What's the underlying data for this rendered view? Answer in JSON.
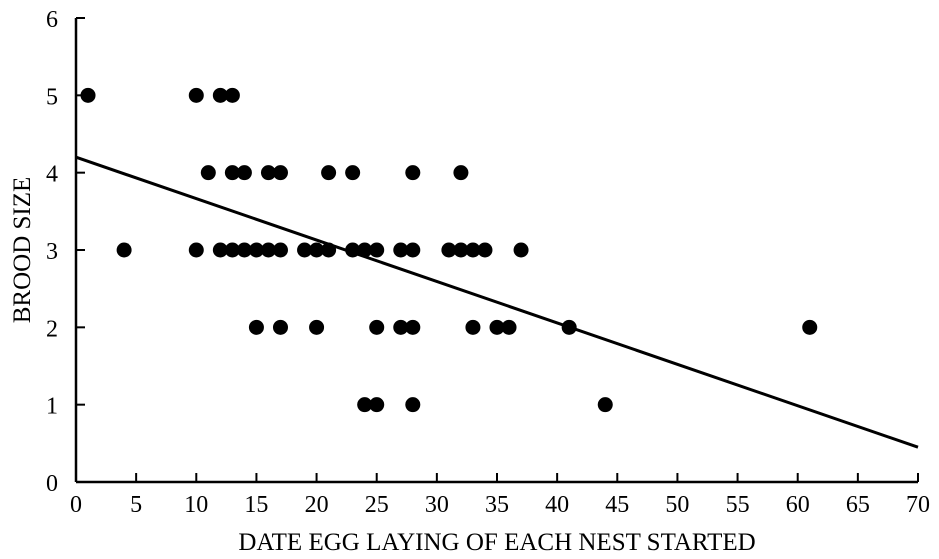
{
  "chart_data": {
    "type": "scatter",
    "title": "",
    "xlabel": "DATE EGG LAYING OF EACH NEST STARTED",
    "ylabel": "BROOD SIZE",
    "xlim": [
      0,
      70
    ],
    "ylim": [
      0,
      6
    ],
    "x_ticks": [
      0,
      5,
      10,
      15,
      20,
      25,
      30,
      35,
      40,
      45,
      50,
      55,
      60,
      65,
      70
    ],
    "y_ticks": [
      0,
      1,
      2,
      3,
      4,
      5,
      6
    ],
    "grid": false,
    "legend": "none",
    "points": [
      {
        "x": 1,
        "y": 5
      },
      {
        "x": 10,
        "y": 5
      },
      {
        "x": 12,
        "y": 5
      },
      {
        "x": 13,
        "y": 5
      },
      {
        "x": 11,
        "y": 4
      },
      {
        "x": 13,
        "y": 4
      },
      {
        "x": 14,
        "y": 4
      },
      {
        "x": 16,
        "y": 4
      },
      {
        "x": 17,
        "y": 4
      },
      {
        "x": 21,
        "y": 4
      },
      {
        "x": 23,
        "y": 4
      },
      {
        "x": 28,
        "y": 4
      },
      {
        "x": 32,
        "y": 4
      },
      {
        "x": 4,
        "y": 3
      },
      {
        "x": 10,
        "y": 3
      },
      {
        "x": 12,
        "y": 3
      },
      {
        "x": 13,
        "y": 3
      },
      {
        "x": 14,
        "y": 3
      },
      {
        "x": 15,
        "y": 3
      },
      {
        "x": 16,
        "y": 3
      },
      {
        "x": 17,
        "y": 3
      },
      {
        "x": 19,
        "y": 3
      },
      {
        "x": 20,
        "y": 3
      },
      {
        "x": 21,
        "y": 3
      },
      {
        "x": 23,
        "y": 3
      },
      {
        "x": 24,
        "y": 3
      },
      {
        "x": 25,
        "y": 3
      },
      {
        "x": 27,
        "y": 3
      },
      {
        "x": 28,
        "y": 3
      },
      {
        "x": 31,
        "y": 3
      },
      {
        "x": 32,
        "y": 3
      },
      {
        "x": 33,
        "y": 3
      },
      {
        "x": 34,
        "y": 3
      },
      {
        "x": 37,
        "y": 3
      },
      {
        "x": 15,
        "y": 2
      },
      {
        "x": 17,
        "y": 2
      },
      {
        "x": 20,
        "y": 2
      },
      {
        "x": 25,
        "y": 2
      },
      {
        "x": 27,
        "y": 2
      },
      {
        "x": 28,
        "y": 2
      },
      {
        "x": 33,
        "y": 2
      },
      {
        "x": 35,
        "y": 2
      },
      {
        "x": 36,
        "y": 2
      },
      {
        "x": 41,
        "y": 2
      },
      {
        "x": 61,
        "y": 2
      },
      {
        "x": 24,
        "y": 1
      },
      {
        "x": 25,
        "y": 1
      },
      {
        "x": 28,
        "y": 1
      },
      {
        "x": 44,
        "y": 1
      }
    ],
    "trend_line": {
      "x": [
        0,
        70
      ],
      "y": [
        4.2,
        0.45
      ]
    },
    "colors": {
      "marker": "#000000",
      "line": "#000000",
      "axis": "#000000"
    }
  }
}
